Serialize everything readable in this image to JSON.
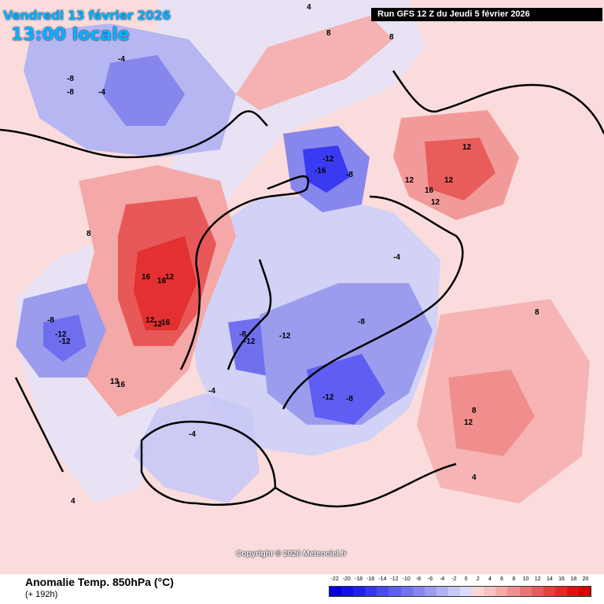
{
  "header": {
    "date": "Vendredi 13 février 2026",
    "local_time": "13:00 locale",
    "run": "Run GFS 12 Z du Jeudi 5 février 2026"
  },
  "footer": {
    "parameter": "Anomalie Temp. 850hPa (°C)",
    "lead": "(+ 192h)",
    "copyright": "Copyright © 2026 Meteociel.fr"
  },
  "legend": {
    "ticks": [
      "-22",
      "-20",
      "-18",
      "-16",
      "-14",
      "-12",
      "-10",
      "-8",
      "-6",
      "-4",
      "-2",
      "0",
      "2",
      "4",
      "6",
      "8",
      "10",
      "12",
      "14",
      "16",
      "18",
      "20"
    ],
    "colors": [
      "#0000d8",
      "#1010e8",
      "#2020f0",
      "#3535f4",
      "#4a4af4",
      "#5e5ef2",
      "#7272ee",
      "#8686ec",
      "#9c9cee",
      "#b2b2f2",
      "#c8c8f6",
      "#dcdcfa",
      "#fbd6d6",
      "#f8c2c2",
      "#f4aaaa",
      "#f09090",
      "#ec7676",
      "#e85c5c",
      "#e64040",
      "#e42828",
      "#e21010",
      "#d80000"
    ]
  },
  "map": {
    "background_color": "#fbdcdc",
    "anomaly_areas": [
      {
        "name": "alaska-cold",
        "color": "#9c9cee",
        "label": "-8"
      },
      {
        "name": "canada-warm",
        "color": "#ec5a5a",
        "label": "16"
      },
      {
        "name": "west-us-cold",
        "color": "#8080ec",
        "label": "-12"
      },
      {
        "name": "siberia-cold",
        "color": "#4a4af0",
        "label": "-16"
      },
      {
        "name": "east-asia-warm",
        "color": "#ec6a6a",
        "label": "12"
      },
      {
        "name": "europe-cold",
        "color": "#8a8aee",
        "label": "-8"
      },
      {
        "name": "scandinavia-cold",
        "color": "#5e5ef2",
        "label": "-12"
      },
      {
        "name": "greenland-cold",
        "color": "#7070ee",
        "label": "-12"
      },
      {
        "name": "middle-east-warm",
        "color": "#f08e8e",
        "label": "12"
      },
      {
        "name": "atlantic-cold",
        "color": "#c8c8f6",
        "label": "-4"
      }
    ],
    "contour_labels": [
      "-8",
      "-4",
      "-8",
      "-4",
      "4",
      "8",
      "12",
      "16",
      "16",
      "12",
      "16",
      "12",
      "-8",
      "-12",
      "-12",
      "13",
      "16",
      "-12",
      "-16",
      "-8",
      "12",
      "16",
      "12",
      "12",
      "-8",
      "-12",
      "-8",
      "-12",
      "-8",
      "-4",
      "-4",
      "8",
      "12",
      "8",
      "4",
      "-4",
      "4",
      "8"
    ]
  }
}
